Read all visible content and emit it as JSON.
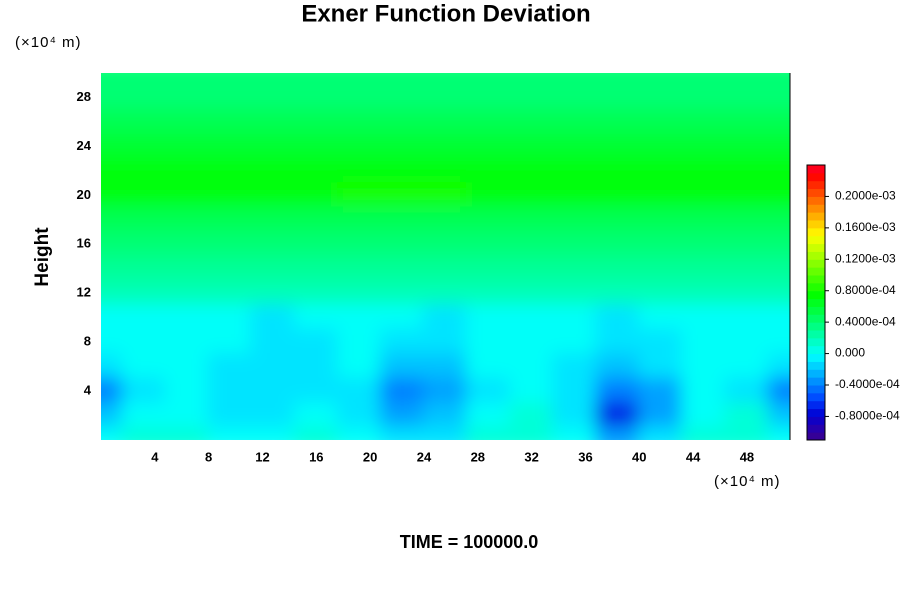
{
  "chart_data": {
    "type": "contour",
    "title": "Exner Function Deviation",
    "ylabel": "Height",
    "x_unit": "(×10⁴ m)",
    "y_unit": "(×10⁴ m)",
    "footer": "TIME = 100000.0",
    "colormap": "rainbow",
    "xlim": [
      0,
      51.2
    ],
    "ylim": [
      0,
      30
    ],
    "xticks": [
      4,
      8,
      12,
      16,
      20,
      24,
      28,
      32,
      36,
      40,
      44,
      48
    ],
    "yticks": [
      4,
      8,
      12,
      16,
      20,
      24,
      28
    ],
    "x": [
      0,
      3.2,
      6.4,
      9.6,
      12.8,
      16,
      19.2,
      22.4,
      25.6,
      28.8,
      32,
      35.2,
      38.4,
      41.6,
      44.8,
      48,
      51.2
    ],
    "y": [
      30,
      28,
      26,
      24,
      22,
      20,
      18,
      16,
      14,
      12,
      10,
      8,
      6,
      4,
      2,
      0
    ],
    "z": [
      [
        4e-05,
        4e-05,
        4e-05,
        4e-05,
        4e-05,
        4e-05,
        4e-05,
        4e-05,
        4e-05,
        4e-05,
        4e-05,
        4e-05,
        4e-05,
        4e-05,
        4e-05,
        4e-05,
        4e-05
      ],
      [
        4e-05,
        4e-05,
        4e-05,
        4e-05,
        4e-05,
        4e-05,
        4e-05,
        4e-05,
        4e-05,
        4e-05,
        4e-05,
        4e-05,
        4e-05,
        4e-05,
        4e-05,
        4e-05,
        4e-05
      ],
      [
        5e-05,
        5e-05,
        5e-05,
        5e-05,
        5e-05,
        5e-05,
        5e-05,
        5e-05,
        5e-05,
        5e-05,
        5e-05,
        5e-05,
        5e-05,
        5e-05,
        5e-05,
        5e-05,
        5e-05
      ],
      [
        6e-05,
        6e-05,
        6e-05,
        6e-05,
        6e-05,
        6e-05,
        6e-05,
        6e-05,
        6e-05,
        6e-05,
        6e-05,
        6e-05,
        6e-05,
        6e-05,
        6e-05,
        6e-05,
        6e-05
      ],
      [
        7e-05,
        7e-05,
        7e-05,
        7e-05,
        7e-05,
        7e-05,
        7e-05,
        7e-05,
        7e-05,
        7e-05,
        7e-05,
        7e-05,
        7e-05,
        7e-05,
        7e-05,
        7e-05,
        7e-05
      ],
      [
        7e-05,
        7e-05,
        7e-05,
        7e-05,
        7e-05,
        7e-05,
        8e-05,
        8e-05,
        8e-05,
        7e-05,
        7e-05,
        7e-05,
        7e-05,
        7e-05,
        7e-05,
        7e-05,
        7e-05
      ],
      [
        5e-05,
        5e-05,
        5e-05,
        5e-05,
        5e-05,
        5e-05,
        5e-05,
        5e-05,
        5e-05,
        5e-05,
        5e-05,
        5e-05,
        5e-05,
        5e-05,
        5e-05,
        5e-05,
        5e-05
      ],
      [
        4e-05,
        4e-05,
        4e-05,
        4e-05,
        4e-05,
        4e-05,
        4e-05,
        4e-05,
        4e-05,
        4e-05,
        4e-05,
        4e-05,
        4e-05,
        4e-05,
        4e-05,
        4e-05,
        4e-05
      ],
      [
        3e-05,
        3e-05,
        3e-05,
        3e-05,
        3e-05,
        3e-05,
        3e-05,
        3e-05,
        3e-05,
        3e-05,
        3e-05,
        3e-05,
        3e-05,
        3e-05,
        3e-05,
        3e-05,
        3e-05
      ],
      [
        2e-05,
        2e-05,
        2e-05,
        2e-05,
        2e-05,
        2e-05,
        2e-05,
        2e-05,
        2e-05,
        2e-05,
        2e-05,
        2e-05,
        2e-05,
        2e-05,
        2e-05,
        2e-05,
        2e-05
      ],
      [
        0,
        0,
        0,
        0,
        -1e-05,
        0,
        0,
        0,
        -1e-05,
        0,
        0,
        0,
        -1e-05,
        0,
        0,
        0,
        0
      ],
      [
        0,
        0,
        0,
        0,
        -1e-05,
        -1e-05,
        0,
        -1e-05,
        -1e-05,
        0,
        0,
        0,
        -1e-05,
        -1e-05,
        0,
        0,
        0
      ],
      [
        -1e-05,
        0,
        0,
        -1e-05,
        -1e-05,
        -1e-05,
        0,
        -2e-05,
        -2e-05,
        0,
        0,
        -1e-05,
        -2e-05,
        -1e-05,
        0,
        0,
        -1e-05
      ],
      [
        -4e-05,
        -1e-05,
        0,
        -1e-05,
        -1e-05,
        -1e-05,
        -1e-05,
        -4e-05,
        -3e-05,
        -1e-05,
        0,
        -1e-05,
        -4e-05,
        -3e-05,
        0,
        -1e-05,
        -4e-05
      ],
      [
        -2e-05,
        0,
        0,
        -1e-05,
        -1e-05,
        0,
        -1e-05,
        -3e-05,
        -2e-05,
        0,
        1e-05,
        -1e-05,
        -7e-05,
        -3e-05,
        0,
        1e-05,
        -2e-05
      ],
      [
        0,
        1e-05,
        1e-05,
        0,
        0,
        1e-05,
        0,
        -1e-05,
        -1e-05,
        1e-05,
        1e-05,
        0,
        -3e-05,
        -1e-05,
        1e-05,
        1e-05,
        0
      ]
    ],
    "clim": [
      -0.00011,
      0.00024
    ],
    "cticks": [
      {
        "value": 0.0002,
        "label": "0.2000e-03"
      },
      {
        "value": 0.00016,
        "label": "0.1600e-03"
      },
      {
        "value": 0.00012,
        "label": "0.1200e-03"
      },
      {
        "value": 8e-05,
        "label": "0.8000e-04"
      },
      {
        "value": 4e-05,
        "label": "0.4000e-04"
      },
      {
        "value": 0,
        "label": "0.000"
      },
      {
        "value": -4e-05,
        "label": "-0.4000e-04"
      },
      {
        "value": -8e-05,
        "label": "-0.8000e-04"
      }
    ]
  }
}
